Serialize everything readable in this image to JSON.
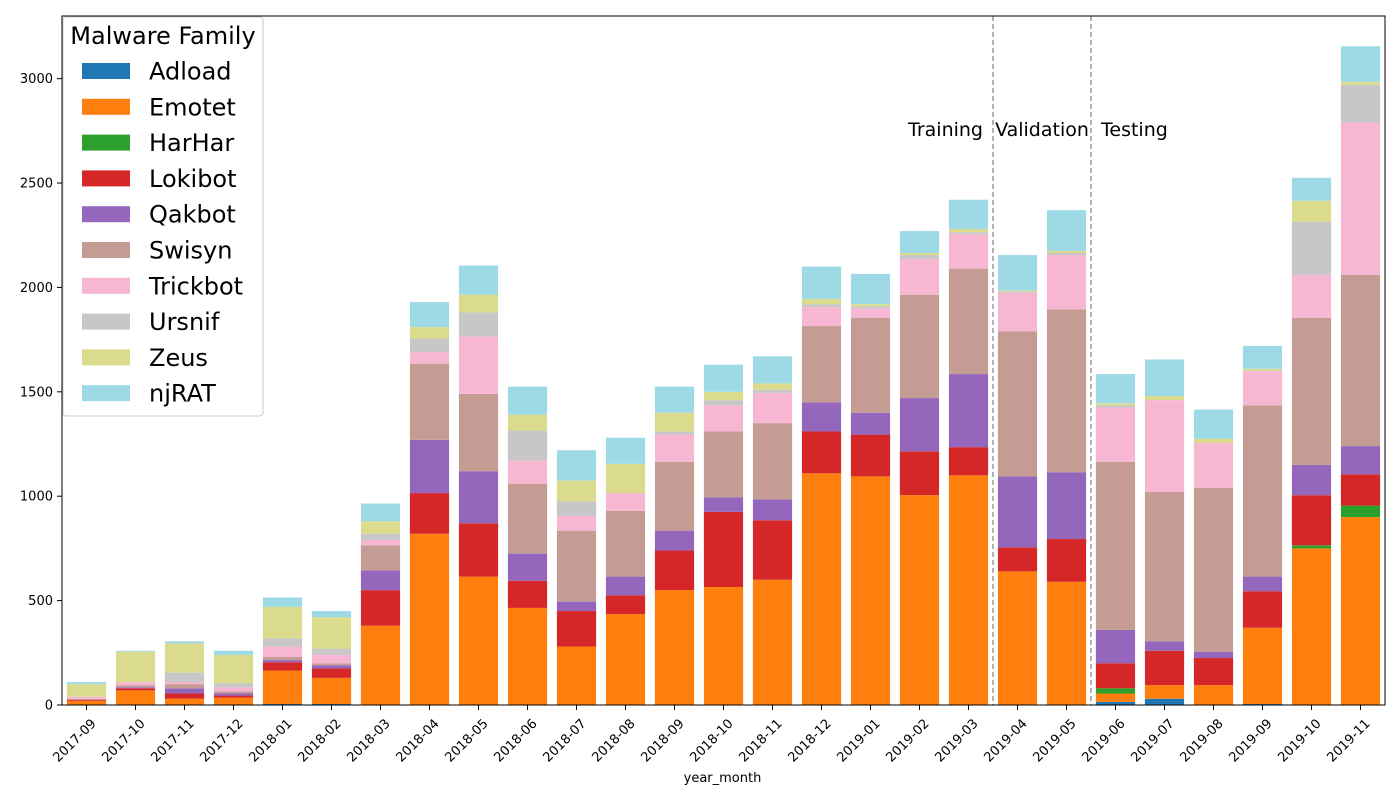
{
  "chart_data": {
    "type": "bar",
    "stacked": true,
    "title": "",
    "xlabel": "year_month",
    "ylabel": "",
    "ylim": [
      0,
      3300
    ],
    "yticks": [
      0,
      500,
      1000,
      1500,
      2000,
      2500,
      3000
    ],
    "categories": [
      "2017-09",
      "2017-10",
      "2017-11",
      "2017-12",
      "2018-01",
      "2018-02",
      "2018-03",
      "2018-04",
      "2018-05",
      "2018-06",
      "2018-07",
      "2018-08",
      "2018-09",
      "2018-10",
      "2018-11",
      "2018-12",
      "2019-01",
      "2019-02",
      "2019-03",
      "2019-04",
      "2019-05",
      "2019-06",
      "2019-07",
      "2019-08",
      "2019-09",
      "2019-10",
      "2019-11"
    ],
    "legend": {
      "title": "Malware Family",
      "position": "upper-left"
    },
    "series": [
      {
        "name": "Adload",
        "color": "#1f77b4",
        "values": [
          0,
          0,
          0,
          0,
          5,
          5,
          0,
          0,
          0,
          0,
          0,
          0,
          0,
          0,
          0,
          0,
          0,
          0,
          0,
          0,
          0,
          15,
          30,
          0,
          5,
          0,
          0
        ]
      },
      {
        "name": "Emotet",
        "color": "#ff7f0e",
        "values": [
          20,
          70,
          30,
          35,
          160,
          125,
          380,
          820,
          615,
          465,
          280,
          435,
          550,
          565,
          600,
          1110,
          1095,
          1005,
          1100,
          640,
          590,
          40,
          65,
          95,
          365,
          750,
          900
        ]
      },
      {
        "name": "HarHar",
        "color": "#2ca02c",
        "values": [
          0,
          0,
          0,
          0,
          0,
          0,
          0,
          0,
          0,
          0,
          0,
          0,
          0,
          0,
          0,
          0,
          0,
          0,
          0,
          0,
          0,
          25,
          0,
          0,
          0,
          15,
          55
        ]
      },
      {
        "name": "Lokibot",
        "color": "#d62728",
        "values": [
          5,
          10,
          25,
          10,
          40,
          45,
          170,
          195,
          255,
          130,
          170,
          90,
          190,
          360,
          285,
          200,
          200,
          210,
          135,
          115,
          205,
          120,
          165,
          130,
          175,
          240,
          150
        ]
      },
      {
        "name": "Qakbot",
        "color": "#9467bd",
        "values": [
          0,
          5,
          25,
          10,
          10,
          15,
          95,
          255,
          250,
          130,
          45,
          90,
          95,
          70,
          100,
          140,
          105,
          255,
          350,
          340,
          320,
          160,
          45,
          30,
          70,
          145,
          135
        ]
      },
      {
        "name": "Swisyn",
        "color": "#c49c94",
        "values": [
          5,
          10,
          20,
          10,
          15,
          10,
          120,
          365,
          370,
          335,
          340,
          315,
          330,
          315,
          365,
          365,
          455,
          495,
          505,
          695,
          780,
          805,
          715,
          785,
          820,
          705,
          820
        ]
      },
      {
        "name": "Trickbot",
        "color": "#f7b6d2",
        "values": [
          10,
          15,
          10,
          20,
          50,
          40,
          25,
          55,
          275,
          110,
          70,
          85,
          130,
          125,
          145,
          90,
          45,
          170,
          165,
          185,
          260,
          260,
          440,
          215,
          165,
          205,
          730
        ]
      },
      {
        "name": "Ursnif",
        "color": "#c7c7c7",
        "values": [
          0,
          0,
          45,
          20,
          40,
          30,
          30,
          65,
          115,
          145,
          70,
          0,
          15,
          25,
          15,
          15,
          10,
          20,
          10,
          5,
          10,
          10,
          0,
          0,
          0,
          255,
          180
        ]
      },
      {
        "name": "Zeus",
        "color": "#dbdb8d",
        "values": [
          60,
          145,
          140,
          135,
          150,
          150,
          60,
          55,
          85,
          75,
          100,
          140,
          90,
          40,
          30,
          25,
          10,
          10,
          15,
          5,
          10,
          10,
          20,
          20,
          10,
          100,
          15
        ]
      },
      {
        "name": "njRAT",
        "color": "#9edae5",
        "values": [
          10,
          5,
          10,
          20,
          45,
          30,
          85,
          120,
          140,
          135,
          145,
          125,
          125,
          130,
          130,
          155,
          145,
          105,
          140,
          170,
          195,
          140,
          175,
          140,
          110,
          110,
          170
        ]
      }
    ],
    "split_markers": {
      "after_categories": [
        "2019-03",
        "2019-05"
      ],
      "style": "dashed",
      "color": "#808080"
    },
    "period_labels": [
      "Training",
      "Validation",
      "Testing"
    ],
    "grid": false
  }
}
